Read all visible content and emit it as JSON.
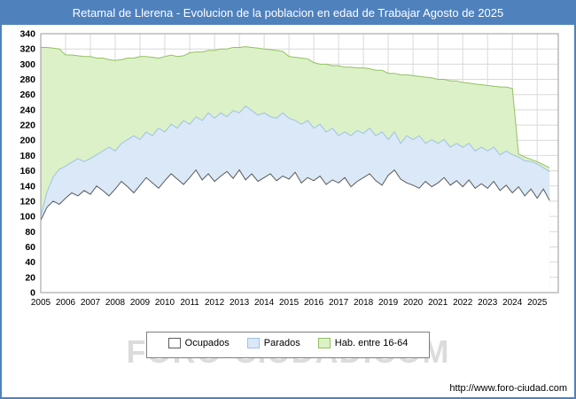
{
  "title": "Retamal de Llerena - Evolucion de la poblacion en edad de Trabajar Agosto de 2025",
  "watermark": "FORO-CIUDAD.COM",
  "footer": {
    "url": "http://www.foro-ciudad.com"
  },
  "colors": {
    "titlebar": "#4f81bd",
    "frame": "#4f81bd",
    "grid": "#d9d9d9",
    "plot_border": "#999999",
    "axis_text": "#000000"
  },
  "legend": [
    {
      "label": "Ocupados",
      "fill": "#ffffff",
      "stroke": "#5a5a5a"
    },
    {
      "label": "Parados",
      "fill": "#dbe8f7",
      "stroke": "#9dc3e6"
    },
    {
      "label": "Hab. entre 16-64",
      "fill": "#dcf1c7",
      "stroke": "#92c162"
    }
  ],
  "chart_data": {
    "type": "area",
    "title": "Retamal de Llerena - Evolucion de la poblacion en edad de Trabajar Agosto de 2025",
    "xlabel": "",
    "ylabel": "",
    "ylim": [
      0,
      340
    ],
    "ytick": 20,
    "xticks": [
      2005,
      2006,
      2007,
      2008,
      2009,
      2010,
      2011,
      2012,
      2013,
      2014,
      2015,
      2016,
      2017,
      2018,
      2019,
      2020,
      2021,
      2022,
      2023,
      2024,
      2025
    ],
    "grid": true,
    "legend_position": "bottom",
    "note": "Monthly-noisy series sampled quarterly; values are cumulative stacked tops as drawn (Parados top = Ocupados + Parados).",
    "x": [
      2005,
      2005.25,
      2005.5,
      2005.75,
      2006,
      2006.25,
      2006.5,
      2006.75,
      2007,
      2007.25,
      2007.5,
      2007.75,
      2008,
      2008.25,
      2008.5,
      2008.75,
      2009,
      2009.25,
      2009.5,
      2009.75,
      2010,
      2010.25,
      2010.5,
      2010.75,
      2011,
      2011.25,
      2011.5,
      2011.75,
      2012,
      2012.25,
      2012.5,
      2012.75,
      2013,
      2013.25,
      2013.5,
      2013.75,
      2014,
      2014.25,
      2014.5,
      2014.75,
      2015,
      2015.25,
      2015.5,
      2015.75,
      2016,
      2016.25,
      2016.5,
      2016.75,
      2017,
      2017.25,
      2017.5,
      2017.75,
      2018,
      2018.25,
      2018.5,
      2018.75,
      2019,
      2019.25,
      2019.5,
      2019.75,
      2020,
      2020.25,
      2020.5,
      2020.75,
      2021,
      2021.25,
      2021.5,
      2021.75,
      2022,
      2022.25,
      2022.5,
      2022.75,
      2023,
      2023.25,
      2023.5,
      2023.75,
      2024,
      2024.25,
      2024.5,
      2024.75,
      2025,
      2025.25,
      2025.5
    ],
    "series": [
      {
        "name": "Hab. entre 16-64",
        "fill": "#dcf1c7",
        "stroke": "#92c162",
        "values": [
          322,
          322,
          321,
          320,
          312,
          312,
          311,
          310,
          310,
          308,
          308,
          306,
          305,
          306,
          308,
          308,
          310,
          310,
          309,
          308,
          310,
          312,
          310,
          311,
          315,
          316,
          316,
          318,
          318,
          320,
          320,
          322,
          322,
          323,
          322,
          321,
          320,
          319,
          318,
          317,
          310,
          309,
          308,
          307,
          302,
          300,
          300,
          298,
          298,
          296,
          296,
          295,
          295,
          294,
          292,
          292,
          288,
          288,
          286,
          286,
          285,
          284,
          283,
          282,
          280,
          280,
          278,
          278,
          276,
          275,
          274,
          273,
          272,
          271,
          270,
          270,
          268,
          182,
          178,
          175,
          172,
          168,
          164
        ]
      },
      {
        "name": "Parados",
        "fill": "#dbe8f7",
        "stroke": "#9dc3e6",
        "values": [
          100,
          132,
          152,
          162,
          166,
          171,
          176,
          172,
          176,
          181,
          186,
          191,
          186,
          196,
          201,
          206,
          201,
          211,
          206,
          216,
          211,
          221,
          216,
          226,
          221,
          231,
          226,
          236,
          229,
          236,
          231,
          239,
          236,
          245,
          239,
          233,
          236,
          231,
          229,
          236,
          229,
          226,
          221,
          226,
          216,
          221,
          211,
          216,
          206,
          211,
          206,
          213,
          209,
          216,
          206,
          211,
          201,
          211,
          196,
          206,
          201,
          206,
          196,
          201,
          196,
          201,
          191,
          196,
          191,
          196,
          186,
          191,
          186,
          191,
          181,
          186,
          181,
          178,
          173,
          172,
          169,
          164,
          159
        ]
      },
      {
        "name": "Ocupados",
        "fill": "#ffffff",
        "stroke": "#5a5a5a",
        "values": [
          95,
          112,
          120,
          116,
          124,
          131,
          127,
          134,
          129,
          140,
          134,
          127,
          136,
          146,
          139,
          131,
          141,
          151,
          144,
          137,
          147,
          156,
          149,
          142,
          151,
          161,
          148,
          156,
          146,
          153,
          159,
          150,
          161,
          148,
          156,
          146,
          151,
          156,
          147,
          153,
          149,
          158,
          144,
          151,
          147,
          153,
          142,
          148,
          144,
          151,
          139,
          146,
          151,
          156,
          147,
          141,
          154,
          161,
          149,
          144,
          141,
          137,
          146,
          139,
          144,
          151,
          141,
          147,
          139,
          148,
          137,
          143,
          137,
          146,
          134,
          141,
          131,
          139,
          127,
          136,
          124,
          136,
          121
        ]
      }
    ]
  }
}
